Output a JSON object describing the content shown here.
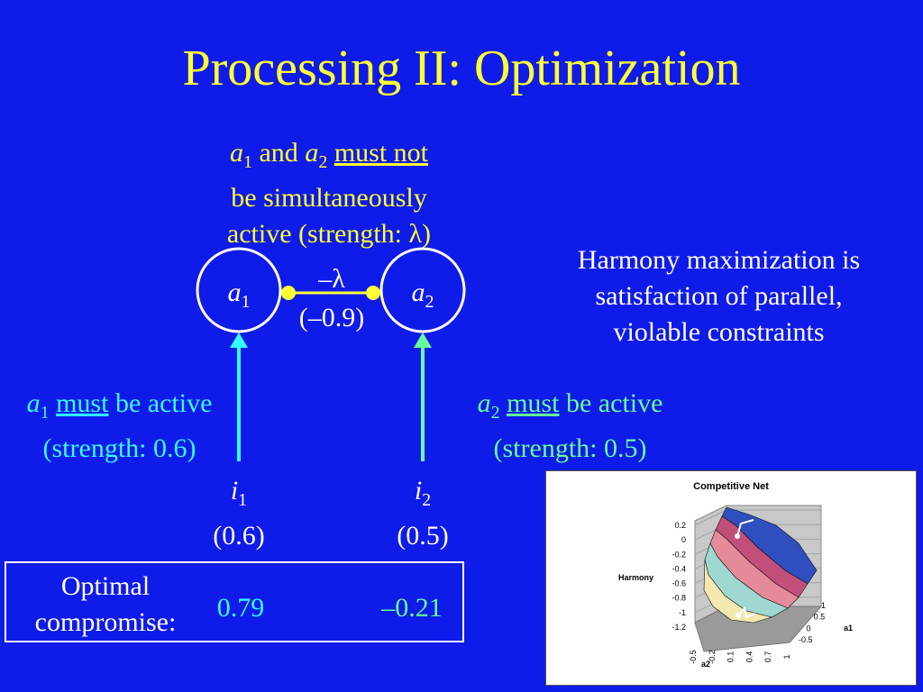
{
  "slide": {
    "title": "Processing II: Optimization"
  },
  "network": {
    "node_a1": {
      "base": "a",
      "sub": "1"
    },
    "node_a2": {
      "base": "a",
      "sub": "2"
    },
    "inhibitory_weight": {
      "symbol": "–λ",
      "value": "(–0.9)"
    },
    "input_i1": {
      "base": "i",
      "sub": "1",
      "value": "(0.6)"
    },
    "input_i2": {
      "base": "i",
      "sub": "2",
      "value": "(0.5)"
    }
  },
  "constraints": {
    "top": {
      "var1": "a",
      "sub1": "1",
      "and": "and",
      "var2": "a",
      "sub2": "2",
      "must_not": "must not",
      "line2": "be simultaneously",
      "line3": "active (strength: λ)"
    },
    "left": {
      "var": "a",
      "sub": "1",
      "must": "must",
      "rest": "be active",
      "strength": "(strength: 0.6)"
    },
    "right": {
      "var": "a",
      "sub": "2",
      "must": "must",
      "rest": "be active",
      "strength": "(strength: 0.5)"
    }
  },
  "harmony_note": {
    "line1": "Harmony maximization is",
    "line2": "satisfaction of parallel,",
    "line3": "violable constraints"
  },
  "compromise": {
    "label_line1": "Optimal",
    "label_line2": "compromise:",
    "a1_value": "0.79",
    "a2_value": "–0.21"
  },
  "chart_data": {
    "type": "surface",
    "title": "Competitive Net",
    "zlabel": "Harmony",
    "xlabel": "a2",
    "ylabel": "a1",
    "z_ticks": [
      "0.2",
      "0",
      "-0.2",
      "-0.4",
      "-0.6",
      "-0.8",
      "-1",
      "-1.2"
    ],
    "x_ticks": [
      "-0.5",
      "-0.2",
      "0.1",
      "0.4",
      "0.7",
      "1"
    ],
    "y_ticks": [
      "1",
      "0.5",
      "0",
      "-0.5"
    ],
    "zlim": [
      -1.2,
      0.2
    ]
  },
  "colors": {
    "background": "#0f1be8",
    "title": "#ffff33",
    "constraint_top": "#ffff33",
    "constraint_left": "#33ffff",
    "constraint_right": "#66ff99",
    "text": "#ffffff"
  }
}
